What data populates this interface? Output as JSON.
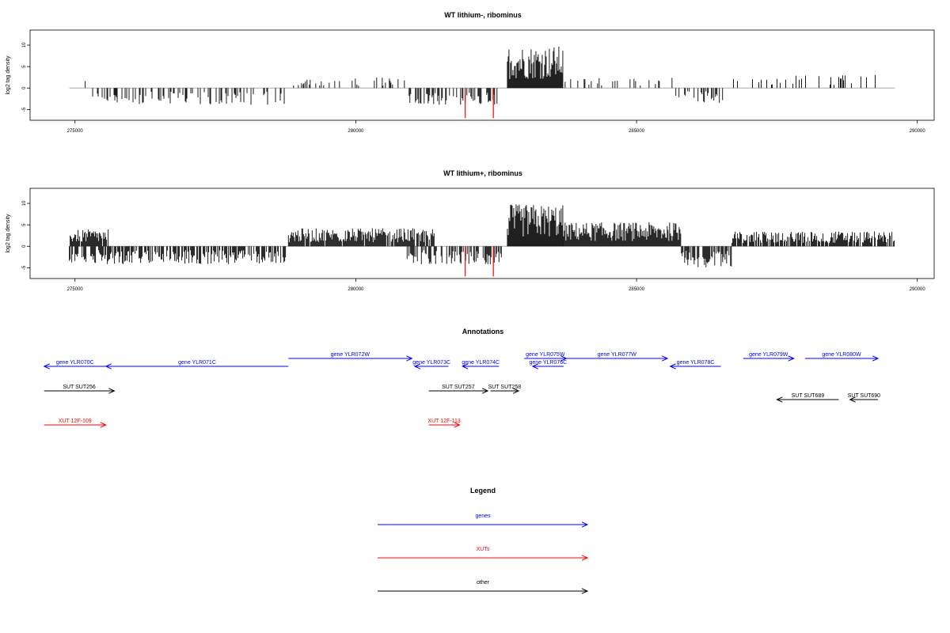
{
  "chart_data": {
    "type": "bar",
    "x_ticks": [
      275000,
      280000,
      285000,
      290000
    ],
    "xlim": [
      274200,
      290300
    ],
    "ylim": [
      -7.5,
      13.5
    ],
    "y_ticks": [
      -5,
      0,
      5,
      10
    ],
    "ylabel": "log2 tag density",
    "panels": [
      {
        "title": "WT lithium-, ribominus",
        "segments": [
          {
            "start": 274900,
            "end": 275200,
            "mean": 2.0,
            "density": 0.15
          },
          {
            "start": 275300,
            "end": 278800,
            "mean": -2.8,
            "density": 0.35
          },
          {
            "start": 278850,
            "end": 280900,
            "mean": 1.8,
            "density": 0.2
          },
          {
            "start": 280950,
            "end": 282550,
            "mean": -2.8,
            "density": 0.5
          },
          {
            "start": 282700,
            "end": 283700,
            "mean": 7.0,
            "density": 1.0
          },
          {
            "start": 283700,
            "end": 285700,
            "mean": 1.8,
            "density": 0.15
          },
          {
            "start": 285700,
            "end": 286600,
            "mean": -2.5,
            "density": 0.4
          },
          {
            "start": 286600,
            "end": 289400,
            "mean": 2.2,
            "density": 0.12
          }
        ],
        "red_bars": [
          {
            "x": 281950,
            "y": -7.0
          },
          {
            "x": 282450,
            "y": -7.0
          }
        ]
      },
      {
        "title": "WT lithium+, ribominus",
        "segments": [
          {
            "start": 274900,
            "end": 275600,
            "mean": 2.8,
            "density": 0.9
          },
          {
            "start": 274900,
            "end": 278800,
            "mean": -3.0,
            "density": 0.7
          },
          {
            "start": 278800,
            "end": 281400,
            "mean": 3.0,
            "density": 0.9
          },
          {
            "start": 280900,
            "end": 282600,
            "mean": -3.0,
            "density": 0.6
          },
          {
            "start": 282700,
            "end": 283700,
            "mean": 7.0,
            "density": 1.0
          },
          {
            "start": 283700,
            "end": 285800,
            "mean": 4.0,
            "density": 1.0
          },
          {
            "start": 285800,
            "end": 286700,
            "mean": -3.5,
            "density": 0.7
          },
          {
            "start": 286700,
            "end": 289600,
            "mean": 2.5,
            "density": 0.8
          }
        ],
        "red_bars": [
          {
            "x": 281950,
            "y": -7.0
          },
          {
            "x": 282450,
            "y": -7.0
          }
        ]
      }
    ]
  },
  "annotations": {
    "title": "Annotations",
    "items": [
      {
        "label": "gene YLR070C",
        "start": 274450,
        "end": 275550,
        "row": 0,
        "dir": "left",
        "type": "gene"
      },
      {
        "label": "gene YLR071C",
        "start": 275550,
        "end": 278800,
        "row": 0,
        "dir": "left",
        "type": "gene"
      },
      {
        "label": "gene YLR072W",
        "start": 278800,
        "end": 281000,
        "row": 0,
        "dir": "right",
        "type": "gene",
        "lift": true
      },
      {
        "label": "gene YLR073C",
        "start": 281050,
        "end": 281650,
        "row": 0,
        "dir": "left",
        "type": "gene"
      },
      {
        "label": "gene YLR074C",
        "start": 281900,
        "end": 282550,
        "row": 0,
        "dir": "left",
        "type": "gene"
      },
      {
        "label": "gene YLR075W",
        "start": 283000,
        "end": 283750,
        "row": 0,
        "dir": "right",
        "type": "gene",
        "lift": true,
        "liftMore": true
      },
      {
        "label": "gene YLR076C",
        "start": 283150,
        "end": 283700,
        "row": 0,
        "dir": "left",
        "type": "gene"
      },
      {
        "label": "gene YLR077W",
        "start": 283750,
        "end": 285550,
        "row": 0,
        "dir": "right",
        "type": "gene",
        "lift": true
      },
      {
        "label": "gene YLR078C",
        "start": 285600,
        "end": 286500,
        "row": 0,
        "dir": "left",
        "type": "gene"
      },
      {
        "label": "gene YLR079W",
        "start": 286900,
        "end": 287800,
        "row": 0,
        "dir": "right",
        "type": "gene",
        "lift": true
      },
      {
        "label": "gene YLR080W",
        "start": 288000,
        "end": 289300,
        "row": 0,
        "dir": "right",
        "type": "gene",
        "lift": true
      },
      {
        "label": "SUT SUT256",
        "start": 274450,
        "end": 275700,
        "row": 1,
        "dir": "right",
        "type": "other"
      },
      {
        "label": "SUT SUT257",
        "start": 281300,
        "end": 282350,
        "row": 1,
        "dir": "right",
        "type": "other"
      },
      {
        "label": "SUT SUT258",
        "start": 282400,
        "end": 282900,
        "row": 1,
        "dir": "right",
        "type": "other"
      },
      {
        "label": "SUT SUT689",
        "start": 287500,
        "end": 288600,
        "row": 2,
        "dir": "left",
        "type": "other"
      },
      {
        "label": "SUT SUT690",
        "start": 288800,
        "end": 289300,
        "row": 2,
        "dir": "left",
        "type": "other"
      },
      {
        "label": "XUT 12F-109",
        "start": 274450,
        "end": 275550,
        "row": 3,
        "dir": "right",
        "type": "xut"
      },
      {
        "label": "XUT 12F-113",
        "start": 281300,
        "end": 281850,
        "row": 3,
        "dir": "right",
        "type": "xut"
      }
    ]
  },
  "legend": {
    "title": "Legend",
    "items": [
      {
        "label": "genes",
        "type": "gene"
      },
      {
        "label": "XUTs",
        "type": "xut"
      },
      {
        "label": "other",
        "type": "other"
      }
    ]
  },
  "colors": {
    "gene": "#0000ff",
    "xut": "#ff0000",
    "other": "#000000",
    "baseline": "#aaaaaa"
  }
}
